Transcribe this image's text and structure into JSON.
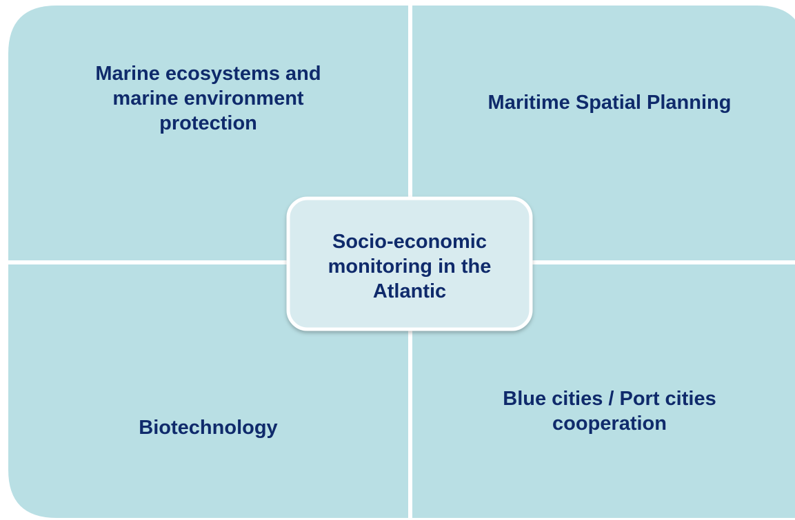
{
  "quadrants": [
    {
      "lines": [
        "Marine ecosystems and",
        "marine environment",
        "protection"
      ]
    },
    {
      "lines": [
        "Maritime Spatial Planning"
      ]
    },
    {
      "lines": [
        "Biotechnology"
      ]
    },
    {
      "lines": [
        "Blue cities / Port cities",
        "cooperation"
      ]
    }
  ],
  "center": {
    "lines": [
      "Socio-economic",
      "monitoring in the",
      "Atlantic"
    ]
  }
}
